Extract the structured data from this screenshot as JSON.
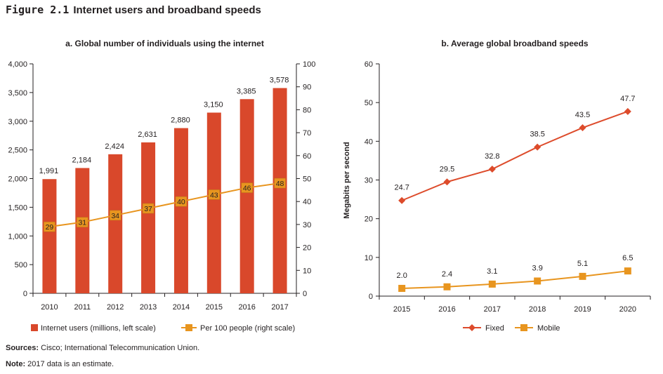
{
  "figure": {
    "number": "Figure 2.1",
    "title": "Internet users and broadband speeds"
  },
  "notes": {
    "sources_label": "Sources:",
    "sources_text": "Cisco; International Telecommunication Union.",
    "note_label": "Note:",
    "note_text": "2017 data is an estimate."
  },
  "colors": {
    "bar": "#d9482b",
    "line_orange": "#e8951f",
    "fixed": "#dd4b2b",
    "mobile": "#e8951f",
    "axis": "#231f20"
  },
  "chart_data": [
    {
      "type": "bar",
      "title": "a. Global number of individuals using the internet",
      "categories": [
        "2010",
        "2011",
        "2012",
        "2013",
        "2014",
        "2015",
        "2016",
        "2017"
      ],
      "series": [
        {
          "name": "Internet users (millions, left scale)",
          "type": "bar",
          "axis": "left",
          "values": [
            1991,
            2184,
            2424,
            2631,
            2880,
            3150,
            3385,
            3578
          ],
          "labels": [
            "1,991",
            "2,184",
            "2,424",
            "2,631",
            "2,880",
            "3,150",
            "3,385",
            "3,578"
          ]
        },
        {
          "name": "Per 100 people (right scale)",
          "type": "line",
          "axis": "right",
          "values": [
            29,
            31,
            34,
            37,
            40,
            43,
            46,
            48
          ],
          "labels": [
            "29",
            "31",
            "34",
            "37",
            "40",
            "43",
            "46",
            "48"
          ]
        }
      ],
      "ylim_left": [
        0,
        4000
      ],
      "yticks_left": [
        "0",
        "500",
        "1,000",
        "1,500",
        "2,000",
        "2,500",
        "3,000",
        "3,500",
        "4,000"
      ],
      "ylim_right": [
        0,
        100
      ],
      "yticks_right": [
        "0",
        "10",
        "20",
        "30",
        "40",
        "50",
        "60",
        "70",
        "80",
        "90",
        "100"
      ],
      "legend": "bottom",
      "grid": false
    },
    {
      "type": "line",
      "title": "b. Average global broadband speeds",
      "ylabel": "Megabits per second",
      "categories": [
        "2015",
        "2016",
        "2017",
        "2018",
        "2019",
        "2020"
      ],
      "series": [
        {
          "name": "Fixed",
          "values": [
            24.7,
            29.5,
            32.8,
            38.5,
            43.5,
            47.7
          ],
          "labels": [
            "24.7",
            "29.5",
            "32.8",
            "38.5",
            "43.5",
            "47.7"
          ]
        },
        {
          "name": "Mobile",
          "values": [
            2.0,
            2.4,
            3.1,
            3.9,
            5.1,
            6.5
          ],
          "labels": [
            "2.0",
            "2.4",
            "3.1",
            "3.9",
            "5.1",
            "6.5"
          ]
        }
      ],
      "ylim": [
        0,
        60
      ],
      "yticks": [
        "0",
        "10",
        "20",
        "30",
        "40",
        "50",
        "60"
      ],
      "legend": "bottom",
      "grid": false
    }
  ]
}
